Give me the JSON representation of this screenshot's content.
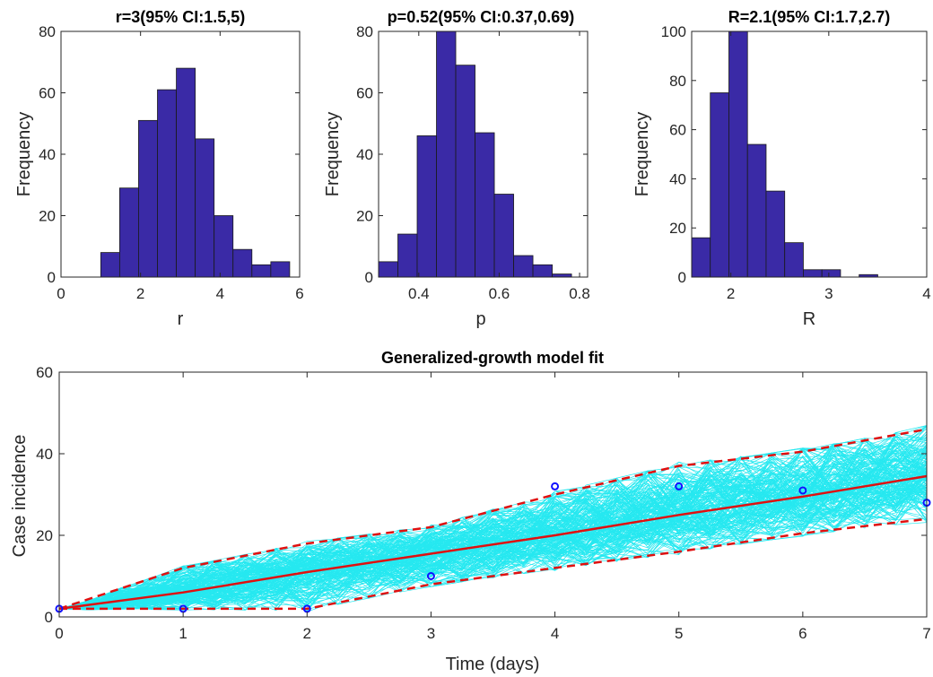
{
  "colors": {
    "bar_fill": "#3a2aa6",
    "bar_edge": "#1a1a1a",
    "ensemble": "#00e5ee",
    "fit": "#e01010",
    "ci": "#e01010",
    "observed": "#1010ff"
  },
  "chart_data": [
    {
      "type": "bar",
      "title": "r=3(95% CI:1.5,5)",
      "xlabel": "r",
      "ylabel": "Frequency",
      "xlim": [
        0,
        6
      ],
      "ylim": [
        0,
        80
      ],
      "xticks": [
        "0",
        "2",
        "4",
        "6"
      ],
      "yticks": [
        "0",
        "20",
        "40",
        "60",
        "80"
      ],
      "bin_edges": [
        1.0,
        1.475,
        1.95,
        2.425,
        2.9,
        3.375,
        3.85,
        4.325,
        4.8,
        5.275,
        5.75
      ],
      "values": [
        8,
        29,
        51,
        61,
        68,
        45,
        20,
        9,
        4,
        5
      ]
    },
    {
      "type": "bar",
      "title": "p=0.52(95% CI:0.37,0.69)",
      "xlabel": "p",
      "ylabel": "Frequency",
      "xlim": [
        0.3,
        0.82
      ],
      "ylim": [
        0,
        80
      ],
      "xticks": [
        "0.4",
        "0.6",
        "0.8"
      ],
      "yticks": [
        "0",
        "20",
        "40",
        "60",
        "80"
      ],
      "bin_edges": [
        0.3,
        0.348,
        0.396,
        0.444,
        0.492,
        0.54,
        0.588,
        0.636,
        0.684,
        0.732,
        0.78,
        0.828
      ],
      "values": [
        5,
        14,
        46,
        80,
        69,
        47,
        27,
        7,
        4,
        1,
        0
      ]
    },
    {
      "type": "bar",
      "title": "R=2.1(95% CI:1.7,2.7)",
      "xlabel": "R",
      "ylabel": "Frequency",
      "xlim": [
        1.6,
        4
      ],
      "ylim": [
        0,
        100
      ],
      "xticks": [
        "2",
        "3",
        "4"
      ],
      "yticks": [
        "0",
        "20",
        "40",
        "60",
        "80",
        "100"
      ],
      "bin_edges": [
        1.6,
        1.79,
        1.98,
        2.17,
        2.36,
        2.55,
        2.74,
        2.93,
        3.12,
        3.31,
        3.5
      ],
      "values": [
        16,
        75,
        100,
        54,
        35,
        14,
        3,
        3,
        0,
        1
      ]
    },
    {
      "type": "line",
      "title": "Generalized-growth model fit",
      "xlabel": "Time (days)",
      "ylabel": "Case incidence",
      "xlim": [
        0,
        7
      ],
      "ylim": [
        0,
        60
      ],
      "xticks": [
        "0",
        "1",
        "2",
        "3",
        "4",
        "5",
        "6",
        "7"
      ],
      "yticks": [
        "0",
        "20",
        "40",
        "60"
      ],
      "series": [
        {
          "x": [
            0,
            1,
            2,
            3,
            4,
            5,
            6,
            7
          ],
          "y": [
            2,
            6,
            11,
            15.5,
            20,
            25,
            29.5,
            34.5
          ]
        },
        {
          "x": [
            0,
            1,
            2,
            3,
            4,
            5,
            6,
            7
          ],
          "y": [
            2,
            2,
            2,
            8,
            12,
            16,
            20.5,
            24
          ]
        },
        {
          "x": [
            0,
            1,
            2,
            3,
            4,
            5,
            6,
            7
          ],
          "y": [
            2,
            12,
            18,
            22,
            30,
            37,
            40.5,
            46
          ]
        },
        {
          "x": [
            0,
            1,
            2,
            3,
            4,
            5,
            6,
            7
          ],
          "y": [
            2,
            2,
            2,
            10,
            32,
            32,
            31,
            28
          ]
        }
      ]
    }
  ]
}
